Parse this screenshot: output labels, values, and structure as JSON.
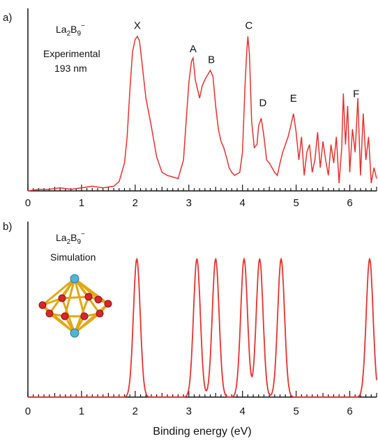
{
  "figure": {
    "xlabel": "Binding energy (eV)"
  },
  "chart_data": [
    {
      "type": "line",
      "panel": "a)",
      "species": "La",
      "species_sub1": "2",
      "species_mid": "B",
      "species_sub2": "9",
      "species_sup": "−",
      "annotation_line1": "Experimental",
      "annotation_line2": "193 nm",
      "xlim": [
        0,
        6.5
      ],
      "xticks": [
        "0",
        "1",
        "2",
        "3",
        "4",
        "5",
        "6"
      ],
      "xlabel": "",
      "ylabel": "",
      "color": "#e8312f",
      "peak_labels": [
        {
          "text": "X",
          "x": 2.04,
          "y": 1.02
        },
        {
          "text": "A",
          "x": 3.08,
          "y": 0.87
        },
        {
          "text": "B",
          "x": 3.42,
          "y": 0.8
        },
        {
          "text": "C",
          "x": 4.12,
          "y": 1.02
        },
        {
          "text": "D",
          "x": 4.38,
          "y": 0.52
        },
        {
          "text": "E",
          "x": 4.95,
          "y": 0.55
        },
        {
          "text": "F",
          "x": 6.12,
          "y": 0.58
        }
      ],
      "x": [
        0.0,
        0.2,
        0.4,
        0.6,
        0.8,
        1.0,
        1.2,
        1.4,
        1.6,
        1.7,
        1.8,
        1.85,
        1.9,
        1.95,
        2.0,
        2.04,
        2.08,
        2.12,
        2.2,
        2.3,
        2.4,
        2.5,
        2.6,
        2.7,
        2.8,
        2.9,
        2.95,
        3.0,
        3.05,
        3.08,
        3.12,
        3.2,
        3.25,
        3.3,
        3.35,
        3.4,
        3.45,
        3.5,
        3.55,
        3.6,
        3.65,
        3.7,
        3.75,
        3.8,
        3.85,
        3.9,
        3.95,
        4.0,
        4.05,
        4.08,
        4.1,
        4.13,
        4.17,
        4.22,
        4.27,
        4.3,
        4.35,
        4.4,
        4.45,
        4.5,
        4.55,
        4.6,
        4.65,
        4.7,
        4.75,
        4.8,
        4.85,
        4.9,
        4.95,
        5.0,
        5.05,
        5.1,
        5.15,
        5.2,
        5.25,
        5.3,
        5.35,
        5.4,
        5.45,
        5.5,
        5.55,
        5.6,
        5.65,
        5.7,
        5.75,
        5.8,
        5.85,
        5.88,
        5.92,
        5.96,
        6.0,
        6.05,
        6.1,
        6.15,
        6.2,
        6.25,
        6.3,
        6.35,
        6.4,
        6.45,
        6.5
      ],
      "values": [
        0.0,
        0.01,
        0.01,
        0.02,
        0.01,
        0.02,
        0.03,
        0.02,
        0.03,
        0.06,
        0.18,
        0.35,
        0.65,
        0.9,
        0.98,
        1.0,
        0.97,
        0.85,
        0.6,
        0.42,
        0.22,
        0.12,
        0.1,
        0.09,
        0.08,
        0.2,
        0.45,
        0.7,
        0.84,
        0.86,
        0.72,
        0.6,
        0.68,
        0.72,
        0.75,
        0.78,
        0.74,
        0.55,
        0.4,
        0.32,
        0.28,
        0.22,
        0.15,
        0.12,
        0.1,
        0.11,
        0.12,
        0.25,
        0.7,
        0.9,
        1.0,
        0.88,
        0.45,
        0.28,
        0.3,
        0.42,
        0.47,
        0.35,
        0.2,
        0.18,
        0.15,
        0.12,
        0.1,
        0.18,
        0.25,
        0.3,
        0.35,
        0.42,
        0.5,
        0.38,
        0.2,
        0.35,
        0.1,
        0.25,
        0.3,
        0.12,
        0.2,
        0.38,
        0.15,
        0.32,
        0.2,
        0.1,
        0.3,
        0.18,
        0.35,
        0.05,
        0.28,
        0.63,
        0.3,
        0.55,
        0.12,
        0.4,
        0.25,
        0.6,
        0.1,
        0.5,
        0.2,
        0.35,
        0.05,
        0.15,
        0.08
      ],
      "ylim": [
        0,
        1.1
      ]
    },
    {
      "type": "line",
      "panel": "b)",
      "species": "La",
      "species_sub1": "2",
      "species_mid": "B",
      "species_sub2": "9",
      "species_sup": "−",
      "annotation_line1": "Simulation",
      "xlim": [
        0,
        6.5
      ],
      "xticks": [
        "0",
        "1",
        "2",
        "3",
        "4",
        "5",
        "6"
      ],
      "xlabel": "Binding energy (eV)",
      "ylabel": "",
      "color": "#e8312f",
      "peaks": [
        {
          "x": 2.03,
          "height": 1.0
        },
        {
          "x": 3.15,
          "height": 1.0
        },
        {
          "x": 3.5,
          "height": 1.0
        },
        {
          "x": 4.03,
          "height": 1.0
        },
        {
          "x": 4.32,
          "height": 1.0
        },
        {
          "x": 4.72,
          "height": 1.0
        },
        {
          "x": 6.37,
          "height": 1.0
        }
      ],
      "peak_width": 0.09,
      "ylim": [
        0,
        1.1
      ]
    }
  ]
}
